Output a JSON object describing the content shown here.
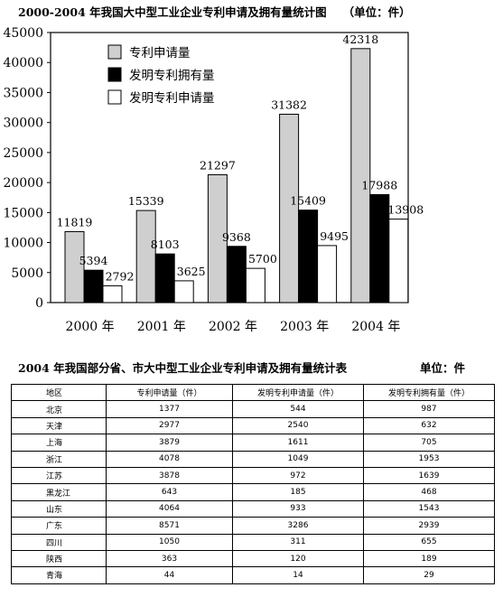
{
  "chart_title": "2000-2004 年我国大中型工业企业专利申请及拥有量统计图",
  "chart_unit": "（单位：件）",
  "chart_data": {
    "type": "bar",
    "categories": [
      "2000 年",
      "2001 年",
      "2002 年",
      "2003 年",
      "2004 年"
    ],
    "series": [
      {
        "name": "专利申请量",
        "values": [
          11819,
          15339,
          21297,
          31382,
          42318
        ],
        "color": "#cfcfcf"
      },
      {
        "name": "发明专利拥有量",
        "values": [
          5394,
          8103,
          9368,
          15409,
          17988
        ],
        "color": "#000000"
      },
      {
        "name": "发明专利申请量",
        "values": [
          2792,
          3625,
          5700,
          9495,
          13908
        ],
        "color": "#ffffff"
      }
    ],
    "y_ticks": [
      "0",
      "5000",
      "10000",
      "15000",
      "20000",
      "25000",
      "30000",
      "35000",
      "40000",
      "45000"
    ],
    "ylim": [
      0,
      45000
    ],
    "legend_position": "top-left",
    "grid": false
  },
  "table_title": "2004 年我国部分省、市大中型工业企业专利申请及拥有量统计表",
  "table_unit": "单位：件",
  "table": {
    "headers": [
      "地区",
      "专利申请量（件）",
      "发明专利申请量（件）",
      "发明专利拥有量（件）"
    ],
    "rows": [
      [
        "北京",
        "1377",
        "544",
        "987"
      ],
      [
        "天津",
        "2977",
        "2540",
        "632"
      ],
      [
        "上海",
        "3879",
        "1611",
        "705"
      ],
      [
        "浙江",
        "4078",
        "1049",
        "1953"
      ],
      [
        "江苏",
        "3878",
        "972",
        "1639"
      ],
      [
        "黑龙江",
        "643",
        "185",
        "468"
      ],
      [
        "山东",
        "4064",
        "933",
        "1543"
      ],
      [
        "广东",
        "8571",
        "3286",
        "2939"
      ],
      [
        "四川",
        "1050",
        "311",
        "655"
      ],
      [
        "陕西",
        "363",
        "120",
        "189"
      ],
      [
        "青海",
        "44",
        "14",
        "29"
      ]
    ]
  }
}
